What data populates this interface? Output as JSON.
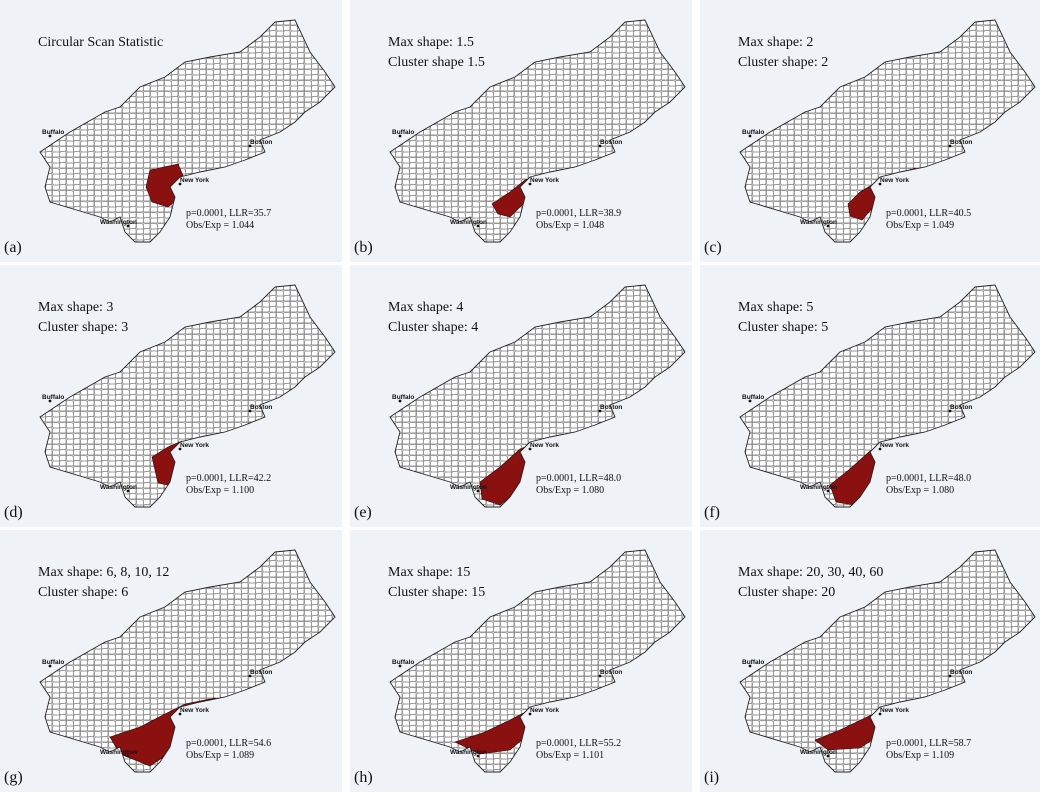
{
  "city_labels": [
    "Buffalo",
    "Boston",
    "New York",
    "Washington"
  ],
  "panels": [
    {
      "label": "(a)",
      "lines": [
        "Circular Scan Statistic"
      ],
      "stats": [
        "p=0.0001, LLR=35.7",
        "Obs/Exp = 1.044"
      ]
    },
    {
      "label": "(b)",
      "lines": [
        "Max shape: 1.5",
        "Cluster shape 1.5"
      ],
      "stats": [
        "p=0.0001, LLR=38.9",
        "Obs/Exp = 1.048"
      ]
    },
    {
      "label": "(c)",
      "lines": [
        "Max shape: 2",
        "Cluster shape: 2"
      ],
      "stats": [
        "p=0.0001, LLR=40.5",
        "Obs/Exp = 1.049"
      ]
    },
    {
      "label": "(d)",
      "lines": [
        "Max shape: 3",
        "Cluster shape: 3"
      ],
      "stats": [
        "p=0.0001, LLR=42.2",
        "Obs/Exp = 1.100"
      ]
    },
    {
      "label": "(e)",
      "lines": [
        "Max shape: 4",
        "Cluster shape: 4"
      ],
      "stats": [
        "p=0.0001, LLR=48.0",
        "Obs/Exp = 1.080"
      ]
    },
    {
      "label": "(f)",
      "lines": [
        "Max shape: 5",
        "Cluster shape: 5"
      ],
      "stats": [
        "p=0.0001, LLR=48.0",
        "Obs/Exp = 1.080"
      ]
    },
    {
      "label": "(g)",
      "lines": [
        "Max shape: 6, 8, 10, 12",
        "Cluster shape: 6"
      ],
      "stats": [
        "p=0.0001, LLR=54.6",
        "Obs/Exp = 1.089"
      ]
    },
    {
      "label": "(h)",
      "lines": [
        "Max shape: 15",
        "Cluster shape: 15"
      ],
      "stats": [
        "p=0.0001, LLR=55.2",
        "Obs/Exp = 1.101"
      ]
    },
    {
      "label": "(i)",
      "lines": [
        "Max shape: 20, 30, 40, 60",
        "Cluster shape: 20"
      ],
      "stats": [
        "p=0.0001, LLR=58.7",
        "Obs/Exp = 1.109"
      ]
    }
  ]
}
